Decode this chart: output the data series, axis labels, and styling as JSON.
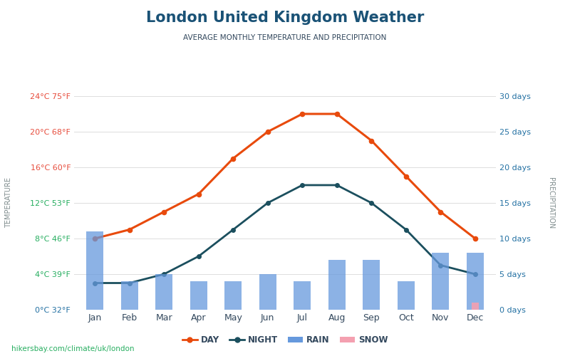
{
  "title": "London United Kingdom Weather",
  "subtitle": "AVERAGE MONTHLY TEMPERATURE AND PRECIPITATION",
  "months": [
    "Jan",
    "Feb",
    "Mar",
    "Apr",
    "May",
    "Jun",
    "Jul",
    "Aug",
    "Sep",
    "Oct",
    "Nov",
    "Dec"
  ],
  "day_temp": [
    8,
    9,
    11,
    13,
    17,
    20,
    22,
    22,
    19,
    15,
    11,
    8
  ],
  "night_temp": [
    3,
    3,
    4,
    6,
    9,
    12,
    14,
    14,
    12,
    9,
    5,
    4
  ],
  "rain_days": [
    11,
    4,
    5,
    4,
    4,
    5,
    4,
    7,
    7,
    4,
    8,
    8
  ],
  "snow_days": [
    0,
    0,
    0,
    0,
    0,
    0,
    0,
    0,
    0,
    0,
    0,
    1
  ],
  "temp_min": 0,
  "temp_max": 24,
  "temp_ticks": [
    0,
    4,
    8,
    12,
    16,
    20,
    24
  ],
  "temp_labels_cf": [
    "0°C 32°F",
    "4°C 39°F",
    "8°C 46°F",
    "12°C 53°F",
    "16°C 60°F",
    "20°C 68°F",
    "24°C 75°F"
  ],
  "tick_colors": [
    "#2471a3",
    "#27ae60",
    "#27ae60",
    "#27ae60",
    "#e74c3c",
    "#e74c3c",
    "#e74c3c"
  ],
  "precip_min": 0,
  "precip_max": 30,
  "precip_ticks": [
    0,
    5,
    10,
    15,
    20,
    25,
    30
  ],
  "precip_labels": [
    "0 days",
    "5 days",
    "10 days",
    "15 days",
    "20 days",
    "25 days",
    "30 days"
  ],
  "day_color": "#e84a0c",
  "night_color": "#1b4f5e",
  "rain_color": "#6699dd",
  "snow_color": "#f4a0b0",
  "title_color": "#1a5276",
  "subtitle_color": "#34495e",
  "right_label_color": "#2471a3",
  "temp_label_color": "#7f8c8d",
  "precip_label_color": "#7f8c8d",
  "watermark": "hikersbay.com/climate/uk/london",
  "watermark_color": "#27ae60",
  "background_color": "#ffffff",
  "grid_color": "#dddddd"
}
